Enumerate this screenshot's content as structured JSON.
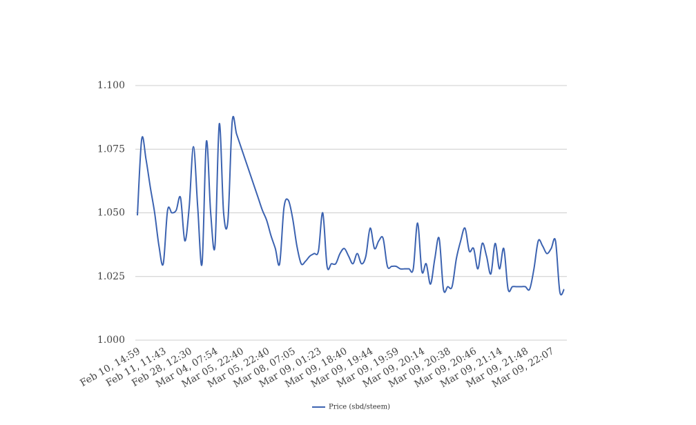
{
  "chart_data": {
    "type": "line",
    "categories": [
      "Feb 10, 14:59",
      null,
      null,
      null,
      null,
      null,
      "Feb 11, 11:43",
      null,
      null,
      null,
      null,
      null,
      "Feb 28, 12:30",
      null,
      null,
      null,
      null,
      null,
      "Mar 04, 07:54",
      null,
      null,
      null,
      null,
      null,
      "Mar 05, 22:40",
      null,
      null,
      null,
      null,
      null,
      "Mar 05, 22:40",
      null,
      null,
      null,
      null,
      null,
      "Mar 08, 07:05",
      null,
      null,
      null,
      null,
      null,
      "Mar 09, 01:23",
      null,
      null,
      null,
      null,
      null,
      "Mar 09, 18:40",
      null,
      null,
      null,
      null,
      null,
      "Mar 09, 19:44",
      null,
      null,
      null,
      null,
      null,
      "Mar 09, 19:59",
      null,
      null,
      null,
      null,
      null,
      "Mar 09, 20:14",
      null,
      null,
      null,
      null,
      null,
      "Mar 09, 20:38",
      null,
      null,
      null,
      null,
      null,
      "Mar 09, 20:46",
      null,
      null,
      null,
      null,
      null,
      "Mar 09, 21:14",
      null,
      null,
      null,
      null,
      null,
      "Mar 09, 21:48",
      null,
      null,
      null,
      null,
      null,
      "Mar 09, 22:07",
      null,
      null,
      null
    ],
    "series": [
      {
        "name": "Price (sbd/steem)",
        "color": "#3b62b0",
        "values": [
          1.049,
          1.079,
          1.071,
          1.06,
          1.05,
          1.037,
          1.03,
          1.051,
          1.05,
          1.051,
          1.056,
          1.039,
          1.052,
          1.076,
          1.052,
          1.03,
          1.078,
          1.05,
          1.037,
          1.085,
          1.05,
          1.047,
          1.086,
          1.081,
          1.076,
          1.071,
          1.066,
          1.061,
          1.056,
          1.051,
          1.047,
          1.041,
          1.036,
          1.03,
          1.052,
          1.055,
          1.048,
          1.037,
          1.03,
          1.031,
          1.033,
          1.034,
          1.035,
          1.05,
          1.029,
          1.03,
          1.03,
          1.034,
          1.036,
          1.033,
          1.03,
          1.034,
          1.03,
          1.033,
          1.044,
          1.036,
          1.039,
          1.04,
          1.029,
          1.029,
          1.029,
          1.028,
          1.028,
          1.028,
          1.028,
          1.046,
          1.027,
          1.03,
          1.022,
          1.032,
          1.04,
          1.02,
          1.021,
          1.021,
          1.032,
          1.039,
          1.044,
          1.035,
          1.036,
          1.028,
          1.038,
          1.033,
          1.026,
          1.038,
          1.028,
          1.036,
          1.02,
          1.021,
          1.021,
          1.021,
          1.021,
          1.02,
          1.028,
          1.039,
          1.037,
          1.034,
          1.036,
          1.039,
          1.019,
          1.02
        ]
      }
    ],
    "ylim": [
      1.0,
      1.1
    ],
    "yticks": [
      {
        "value": 1.0,
        "label": "1.000"
      },
      {
        "value": 1.025,
        "label": "1.025"
      },
      {
        "value": 1.05,
        "label": "1.050"
      },
      {
        "value": 1.075,
        "label": "1.075"
      },
      {
        "value": 1.1,
        "label": "1.100"
      }
    ],
    "grid": true,
    "legend": "bottom"
  }
}
